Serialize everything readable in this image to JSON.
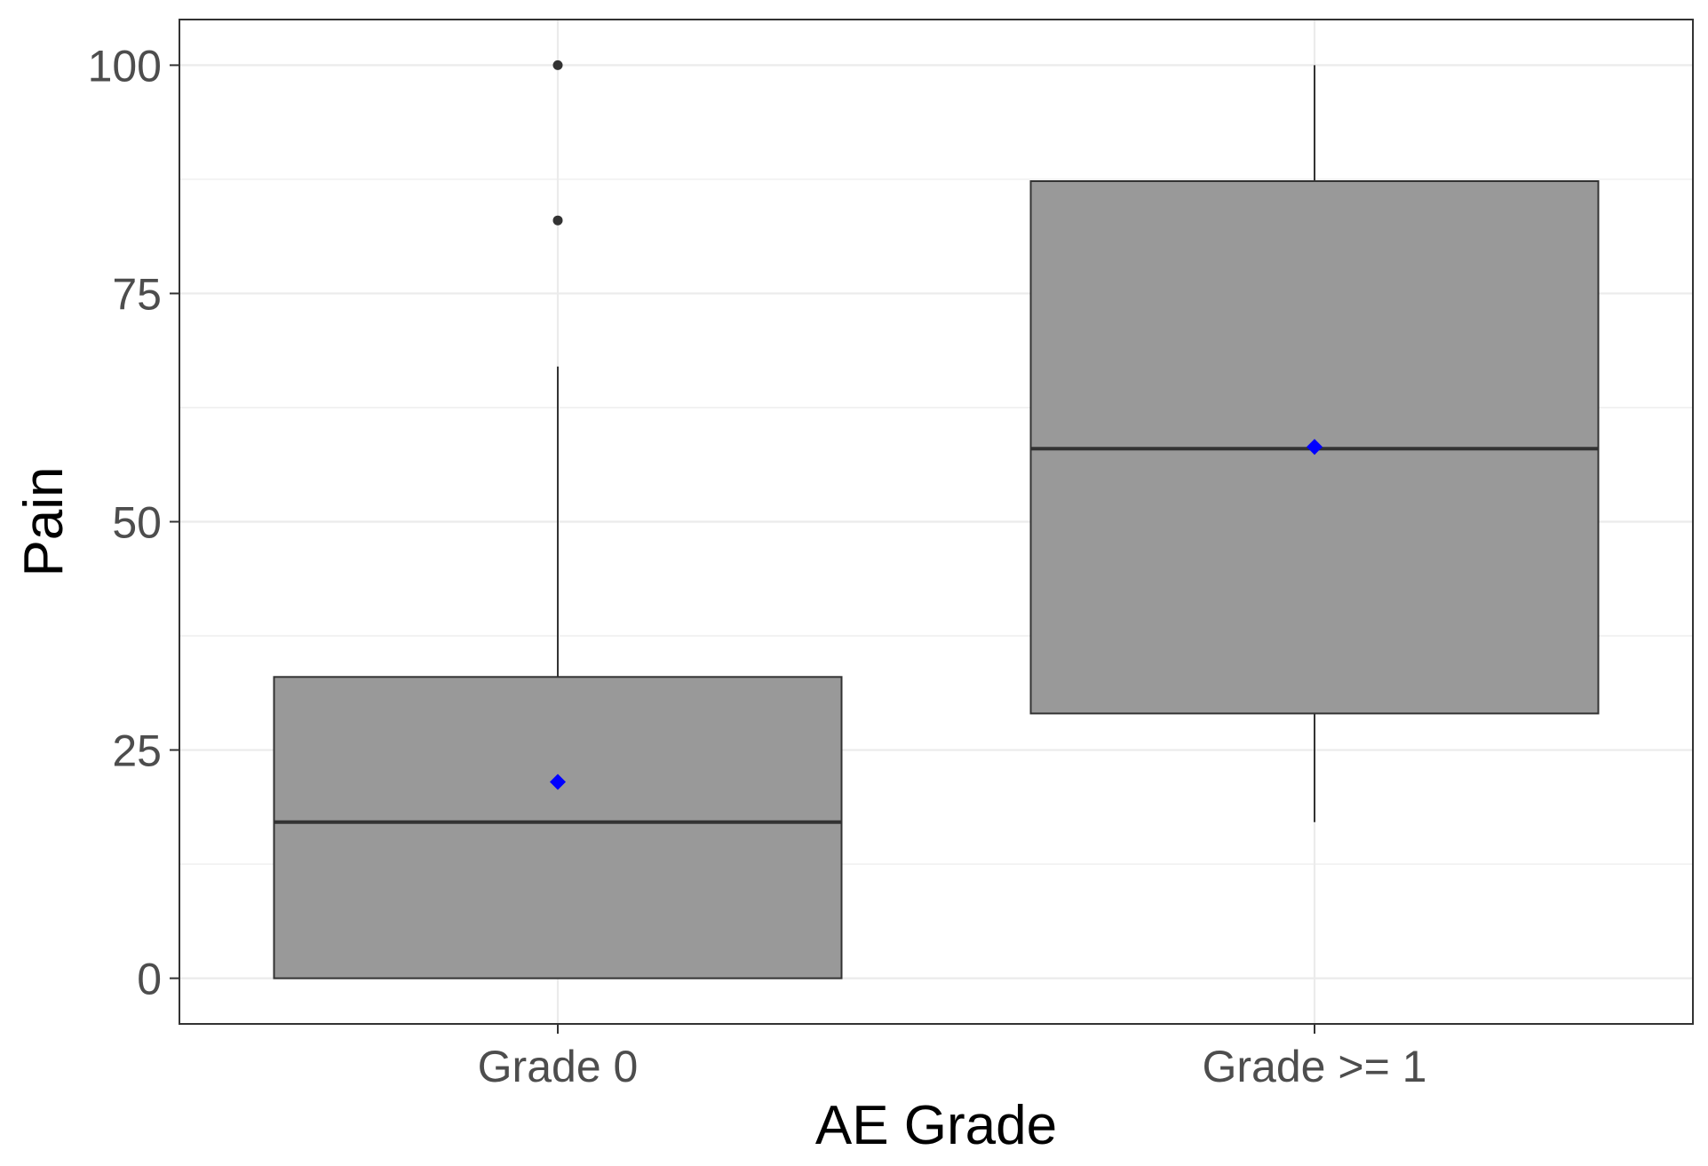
{
  "chart_data": {
    "type": "boxplot",
    "title": "",
    "xlabel": "AE Grade",
    "ylabel": "Pain",
    "ylim": [
      -5,
      105
    ],
    "yticks": [
      0,
      25,
      50,
      75,
      100
    ],
    "yminor": [
      12.5,
      37.5,
      62.5,
      87.5
    ],
    "categories": [
      "Grade 0",
      "Grade >= 1"
    ],
    "boxes": [
      {
        "category": "Grade 0",
        "whisker_low": 0,
        "q1": 0,
        "median": 17.1,
        "q3": 33,
        "whisker_high": 67,
        "mean": 21.5,
        "outliers": [
          83,
          100
        ]
      },
      {
        "category": "Grade >= 1",
        "whisker_low": 17.1,
        "q1": 29,
        "median": 58,
        "q3": 87.3,
        "whisker_high": 100,
        "mean": 58.2,
        "outliers": []
      }
    ],
    "grid": true,
    "colors": {
      "box_fill": "#999999",
      "box_stroke": "#333333",
      "mean_marker": "#0000ff",
      "grid": "#ebebeb",
      "panel_border": "#333333"
    }
  }
}
